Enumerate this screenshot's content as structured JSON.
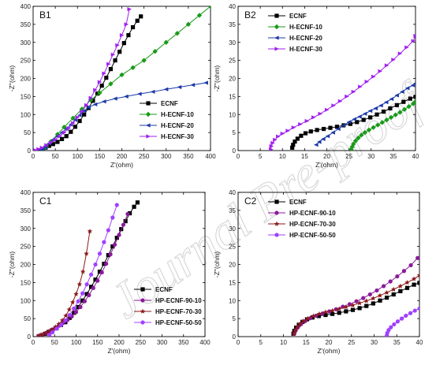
{
  "watermark": "Journal Pre-proof",
  "colors": {
    "ECNF": "#000000",
    "H-ECNF-10": "#1a9a1a",
    "H-ECNF-20": "#1b3aa8",
    "H-ECNF-30": "#a020f0",
    "HP-ECNF-90-10": "#8b1a9b",
    "HP-ECNF-70-30": "#8b1a1a",
    "HP-ECNF-50-50": "#a040ff"
  },
  "chart_data": [
    {
      "panel": "B1",
      "type": "scatter",
      "xlabel": "Z'(ohm)",
      "ylabel": "-Z''(ohm)",
      "xlim": [
        0,
        400
      ],
      "ylim": [
        0,
        400
      ],
      "xticks": [
        0,
        50,
        100,
        150,
        200,
        250,
        300,
        350,
        400
      ],
      "yticks": [
        0,
        50,
        100,
        150,
        200,
        250,
        300,
        350,
        400
      ],
      "legend_position": "bottom-right",
      "series": [
        {
          "name": "ECNF",
          "marker": "square",
          "x": [
            13,
            20,
            28,
            36,
            45,
            55,
            65,
            75,
            85,
            95,
            105,
            115,
            125,
            135,
            145,
            155,
            165,
            175,
            185,
            195,
            205,
            215,
            225,
            235,
            243
          ],
          "y": [
            1,
            4,
            8,
            13,
            18,
            24,
            32,
            40,
            52,
            66,
            82,
            100,
            118,
            138,
            158,
            180,
            202,
            226,
            250,
            274,
            298,
            320,
            342,
            360,
            372
          ]
        },
        {
          "name": "H-ECNF-10",
          "marker": "diamond",
          "x": [
            25,
            30,
            40,
            55,
            70,
            90,
            110,
            130,
            150,
            175,
            200,
            225,
            250,
            275,
            300,
            325,
            350,
            375,
            400
          ],
          "y": [
            5,
            12,
            25,
            45,
            65,
            90,
            115,
            140,
            160,
            185,
            210,
            230,
            250,
            275,
            300,
            325,
            350,
            375,
            400
          ]
        },
        {
          "name": "H-ECNF-20",
          "marker": "triangle-left",
          "x": [
            18,
            22,
            28,
            36,
            45,
            55,
            65,
            75,
            85,
            95,
            105,
            115,
            125,
            140,
            160,
            185,
            210,
            240,
            270,
            300,
            330,
            360,
            390
          ],
          "y": [
            1,
            4,
            10,
            20,
            30,
            40,
            50,
            60,
            72,
            85,
            98,
            110,
            120,
            128,
            136,
            144,
            150,
            157,
            163,
            170,
            176,
            182,
            188
          ]
        },
        {
          "name": "H-ECNF-30",
          "marker": "triangle-right",
          "x": [
            5,
            12,
            20,
            30,
            40,
            50,
            60,
            70,
            80,
            90,
            100,
            110,
            120,
            130,
            140,
            150,
            160,
            170,
            180,
            190,
            200,
            210,
            217
          ],
          "y": [
            1,
            4,
            8,
            15,
            22,
            30,
            40,
            50,
            62,
            76,
            92,
            108,
            126,
            146,
            168,
            190,
            214,
            240,
            266,
            292,
            320,
            350,
            392
          ]
        }
      ]
    },
    {
      "panel": "B2",
      "type": "scatter",
      "xlabel": "Z'(ohm)",
      "ylabel": "-Z''(ohm)",
      "xlim": [
        0,
        40
      ],
      "ylim": [
        0,
        40
      ],
      "xticks": [
        0,
        5,
        10,
        15,
        20,
        25,
        30,
        35,
        40
      ],
      "yticks": [
        0,
        5,
        10,
        15,
        20,
        25,
        30,
        35,
        40
      ],
      "legend_position": "top-left",
      "series": [
        {
          "name": "ECNF",
          "marker": "square",
          "x": [
            12.2,
            12.4,
            12.8,
            13.4,
            14.2,
            15.2,
            16.4,
            17.8,
            19.3,
            20.8,
            22.3,
            23.8,
            25.3,
            26.8,
            28.3,
            29.8,
            31.3,
            32.8,
            34.3,
            35.8,
            37.3,
            38.8,
            40
          ],
          "y": [
            0.8,
            1.6,
            2.5,
            3.3,
            4.1,
            4.8,
            5.3,
            5.7,
            6.0,
            6.3,
            6.6,
            7.0,
            7.4,
            7.9,
            8.5,
            9.2,
            10.0,
            10.8,
            11.7,
            12.6,
            13.5,
            14.4,
            14.9
          ]
        },
        {
          "name": "H-ECNF-10",
          "marker": "diamond",
          "x": [
            25.5,
            25.7,
            26.0,
            26.5,
            27.1,
            27.8,
            28.6,
            29.5,
            30.5,
            31.5,
            32.5,
            33.5,
            34.5,
            35.5,
            36.5,
            37.5,
            38.5,
            39.5,
            40
          ],
          "y": [
            0.3,
            1.0,
            1.8,
            2.7,
            3.5,
            4.3,
            5.0,
            5.7,
            6.4,
            7.1,
            7.8,
            8.5,
            9.2,
            9.9,
            10.6,
            11.4,
            12.2,
            13.0,
            13.6
          ]
        },
        {
          "name": "H-ECNF-20",
          "marker": "triangle-left",
          "x": [
            17.6,
            18.3,
            19.2,
            20.2,
            21.4,
            22.6,
            23.8,
            25.0,
            26.2,
            27.4,
            28.6,
            29.8,
            31.0,
            32.2,
            33.4,
            34.6,
            35.8,
            37.0,
            38.2,
            39.4,
            40
          ],
          "y": [
            1.6,
            2.4,
            3.2,
            4.0,
            5.0,
            6.0,
            7.0,
            7.9,
            8.7,
            9.4,
            10.2,
            11.0,
            11.7,
            12.5,
            13.4,
            14.3,
            15.3,
            16.3,
            17.3,
            18.1,
            18.6
          ]
        },
        {
          "name": "H-ECNF-30",
          "marker": "triangle-right",
          "x": [
            7.4,
            7.5,
            7.8,
            8.3,
            9.0,
            10.0,
            11.2,
            12.5,
            14.0,
            15.5,
            17.0,
            18.5,
            20.0,
            21.5,
            23.0,
            24.5,
            26.0,
            27.5,
            29.0,
            30.5,
            32.0,
            33.5,
            35.0,
            36.5,
            38.0,
            39.5,
            40
          ],
          "y": [
            0.3,
            1.2,
            2.1,
            3.0,
            3.9,
            4.7,
            5.5,
            6.4,
            7.3,
            8.2,
            9.2,
            10.2,
            11.3,
            12.5,
            13.7,
            15.0,
            16.3,
            17.7,
            19.1,
            20.5,
            22.0,
            23.6,
            25.2,
            26.9,
            28.6,
            30.4,
            31.8
          ]
        }
      ]
    },
    {
      "panel": "C1",
      "type": "scatter",
      "xlabel": "Z'(ohm)",
      "ylabel": "-Z''(ohm)",
      "xlim": [
        0,
        400
      ],
      "ylim": [
        0,
        400
      ],
      "xticks": [
        0,
        50,
        100,
        150,
        200,
        250,
        300,
        350,
        400
      ],
      "yticks": [
        0,
        50,
        100,
        150,
        200,
        250,
        300,
        350,
        400
      ],
      "legend_position": "bottom-right",
      "series": [
        {
          "name": "ECNF",
          "marker": "square",
          "x": [
            13,
            20,
            28,
            36,
            45,
            55,
            65,
            75,
            85,
            95,
            105,
            115,
            125,
            135,
            145,
            155,
            165,
            175,
            185,
            195,
            205,
            215,
            225,
            235,
            243
          ],
          "y": [
            1,
            4,
            8,
            13,
            18,
            24,
            32,
            40,
            52,
            66,
            82,
            100,
            118,
            138,
            158,
            180,
            202,
            226,
            250,
            274,
            298,
            320,
            342,
            360,
            372
          ]
        },
        {
          "name": "HP-ECNF-90-10",
          "marker": "circle",
          "x": [
            13,
            20,
            30,
            40,
            50,
            60,
            70,
            80,
            90,
            100,
            110,
            120,
            130,
            140,
            150,
            160,
            170,
            180,
            190,
            200,
            210,
            220
          ],
          "y": [
            2,
            5,
            10,
            16,
            22,
            30,
            38,
            46,
            56,
            68,
            82,
            98,
            115,
            135,
            155,
            178,
            202,
            228,
            255,
            282,
            310,
            340
          ]
        },
        {
          "name": "HP-ECNF-70-30",
          "marker": "star",
          "x": [
            13,
            20,
            28,
            36,
            44,
            52,
            60,
            68,
            76,
            84,
            92,
            100,
            108,
            116,
            124,
            132
          ],
          "y": [
            2,
            5,
            9,
            14,
            20,
            27,
            35,
            45,
            58,
            75,
            95,
            118,
            145,
            180,
            230,
            292
          ]
        },
        {
          "name": "HP-ECNF-50-50",
          "marker": "circle",
          "x": [
            38,
            45,
            55,
            65,
            75,
            85,
            95,
            105,
            115,
            125,
            135,
            145,
            155,
            165,
            175,
            185,
            195
          ],
          "y": [
            5,
            12,
            22,
            32,
            45,
            60,
            78,
            98,
            120,
            145,
            172,
            200,
            230,
            262,
            295,
            330,
            365
          ]
        }
      ]
    },
    {
      "panel": "C2",
      "type": "scatter",
      "xlabel": "Z'(ohm)",
      "ylabel": "-Z''(ohm)",
      "xlim": [
        0,
        40
      ],
      "ylim": [
        0,
        40
      ],
      "xticks": [
        0,
        5,
        10,
        15,
        20,
        25,
        30,
        35,
        40
      ],
      "yticks": [
        0,
        5,
        10,
        15,
        20,
        25,
        30,
        35,
        40
      ],
      "legend_position": "top-left",
      "series": [
        {
          "name": "ECNF",
          "marker": "square",
          "x": [
            12.2,
            12.4,
            12.8,
            13.4,
            14.2,
            15.2,
            16.4,
            17.8,
            19.3,
            20.8,
            22.3,
            23.8,
            25.3,
            26.8,
            28.3,
            29.8,
            31.3,
            32.8,
            34.3,
            35.8,
            37.3,
            38.8,
            40
          ],
          "y": [
            0.8,
            1.6,
            2.5,
            3.3,
            4.1,
            4.8,
            5.3,
            5.7,
            6.0,
            6.3,
            6.6,
            7.0,
            7.4,
            7.9,
            8.5,
            9.2,
            10.0,
            10.8,
            11.7,
            12.6,
            13.5,
            14.4,
            14.9
          ]
        },
        {
          "name": "HP-ECNF-90-10",
          "marker": "circle",
          "x": [
            12.4,
            12.7,
            13.2,
            13.9,
            14.8,
            15.9,
            17.2,
            18.6,
            20.1,
            21.6,
            23.1,
            24.6,
            26.1,
            27.6,
            29.1,
            30.6,
            32.1,
            33.6,
            35.1,
            36.6,
            38.1,
            39.6
          ],
          "y": [
            0.8,
            1.7,
            2.6,
            3.5,
            4.3,
            5.1,
            5.8,
            6.4,
            7.0,
            7.6,
            8.3,
            9.0,
            9.8,
            10.7,
            11.7,
            12.8,
            14.0,
            15.3,
            16.7,
            18.2,
            19.8,
            21.8
          ]
        },
        {
          "name": "HP-ECNF-70-30",
          "marker": "star",
          "x": [
            12.3,
            12.6,
            13.0,
            13.6,
            14.4,
            15.4,
            16.6,
            17.9,
            19.3,
            20.8,
            22.3,
            23.8,
            25.3,
            26.8,
            28.3,
            29.8,
            31.3,
            32.8,
            34.3,
            35.8,
            37.3,
            38.8,
            40
          ],
          "y": [
            0.8,
            1.7,
            2.6,
            3.5,
            4.3,
            5.0,
            5.7,
            6.3,
            6.8,
            7.2,
            7.7,
            8.2,
            8.7,
            9.3,
            9.9,
            10.6,
            11.4,
            12.2,
            13.1,
            14.0,
            15.0,
            16.0,
            17.0
          ]
        },
        {
          "name": "HP-ECNF-50-50",
          "marker": "circle",
          "x": [
            32.8,
            32.9,
            33.2,
            33.7,
            34.4,
            35.2,
            36.1,
            37.0,
            38.0,
            39.0,
            40
          ],
          "y": [
            0.3,
            1.0,
            1.8,
            2.6,
            3.4,
            4.2,
            5.0,
            5.8,
            6.5,
            7.2,
            7.8
          ]
        }
      ]
    }
  ]
}
